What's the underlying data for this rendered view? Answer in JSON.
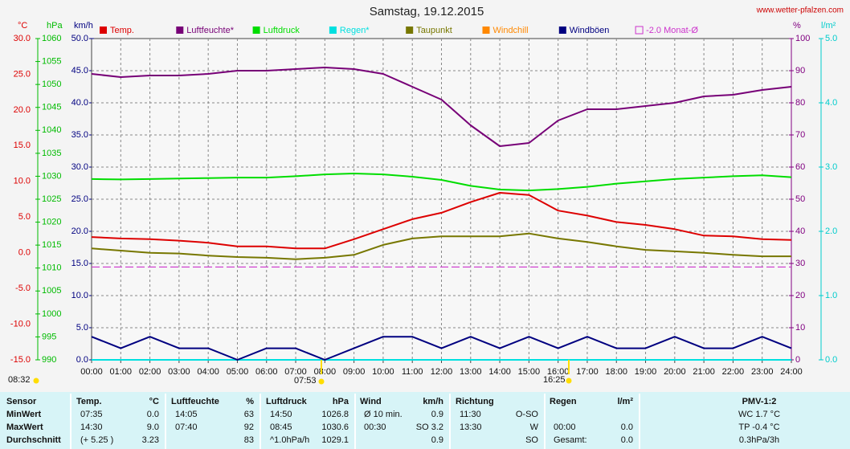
{
  "chart_data": {
    "type": "line",
    "title": "Samstag, 19.12.2015",
    "source": "www.wetter-pfalzen.com",
    "x": [
      0,
      1,
      2,
      3,
      4,
      5,
      6,
      7,
      8,
      9,
      10,
      11,
      12,
      13,
      14,
      15,
      16,
      17,
      18,
      19,
      20,
      21,
      22,
      23,
      24
    ],
    "xlim": [
      0,
      24
    ],
    "xticks": [
      {
        "value": 0,
        "label": "00:00"
      },
      {
        "value": 1,
        "label": "01:00"
      },
      {
        "value": 2,
        "label": "02:00"
      },
      {
        "value": 3,
        "label": "03:00"
      },
      {
        "value": 4,
        "label": "04:00"
      },
      {
        "value": 5,
        "label": "05:00"
      },
      {
        "value": 6,
        "label": "06:00"
      },
      {
        "value": 7,
        "label": "07:00"
      },
      {
        "value": 8,
        "label": "08:00"
      },
      {
        "value": 9,
        "label": "09:00"
      },
      {
        "value": 10,
        "label": "10:00"
      },
      {
        "value": 11,
        "label": "11:00"
      },
      {
        "value": 12,
        "label": "12:00"
      },
      {
        "value": 13,
        "label": "13:00"
      },
      {
        "value": 14,
        "label": "14:00"
      },
      {
        "value": 15,
        "label": "15:00"
      },
      {
        "value": 16,
        "label": "16:00"
      },
      {
        "value": 17,
        "label": "17:00"
      },
      {
        "value": 18,
        "label": "18:00"
      },
      {
        "value": 19,
        "label": "19:00"
      },
      {
        "value": 20,
        "label": "20:00"
      },
      {
        "value": 21,
        "label": "21:00"
      },
      {
        "value": 22,
        "label": "22:00"
      },
      {
        "value": 23,
        "label": "23:00"
      },
      {
        "value": 24,
        "label": "24:00"
      }
    ],
    "grid": true,
    "axes": [
      {
        "label": "°C",
        "color": "#dd0000",
        "ylim": [
          -15,
          30
        ],
        "yticks": [
          {
            "value": -15,
            "label": "-15.0"
          },
          {
            "value": -10,
            "label": "-10.0"
          },
          {
            "value": -5,
            "label": "-5.0"
          },
          {
            "value": 0,
            "label": "0.0"
          },
          {
            "value": 5,
            "label": "5.0"
          },
          {
            "value": 10,
            "label": "10.0"
          },
          {
            "value": 15,
            "label": "15.0"
          },
          {
            "value": 20,
            "label": "20.0"
          },
          {
            "value": 25,
            "label": "25.0"
          },
          {
            "value": 30,
            "label": "30.0"
          }
        ]
      },
      {
        "label": "hPa",
        "color": "#00bb00",
        "ylim": [
          990,
          1060
        ],
        "yticks": [
          990,
          995,
          1000,
          1005,
          1010,
          1015,
          1020,
          1025,
          1030,
          1035,
          1040,
          1045,
          1050,
          1055,
          1060
        ]
      },
      {
        "label": "km/h",
        "color": "#000080",
        "ylim": [
          0,
          50
        ],
        "yticks": [
          {
            "value": 0,
            "label": "0.0"
          },
          {
            "value": 5,
            "label": "5.0"
          },
          {
            "value": 10,
            "label": "10.0"
          },
          {
            "value": 15,
            "label": "15.0"
          },
          {
            "value": 20,
            "label": "20.0"
          },
          {
            "value": 25,
            "label": "25.0"
          },
          {
            "value": 30,
            "label": "30.0"
          },
          {
            "value": 35,
            "label": "35.0"
          },
          {
            "value": 40,
            "label": "40.0"
          },
          {
            "value": 45,
            "label": "45.0"
          },
          {
            "value": 50,
            "label": "50.0"
          }
        ]
      },
      {
        "label": "%",
        "color": "#800080",
        "ylim": [
          0,
          100
        ],
        "yticks": [
          0,
          10,
          20,
          30,
          40,
          50,
          60,
          70,
          80,
          90,
          100
        ]
      },
      {
        "label": "l/m²",
        "color": "#00cccc",
        "ylim": [
          0,
          5
        ],
        "yticks": [
          {
            "value": 0,
            "label": "0.0"
          },
          {
            "value": 1,
            "label": "1.0"
          },
          {
            "value": 2,
            "label": "2.0"
          },
          {
            "value": 3,
            "label": "3.0"
          },
          {
            "value": 4,
            "label": "4.0"
          },
          {
            "value": 5,
            "label": "5.0"
          }
        ]
      }
    ],
    "series": [
      {
        "name": "Temp.",
        "color": "#dd0000",
        "axis": "°C",
        "values": [
          2.2,
          2.0,
          1.9,
          1.7,
          1.4,
          0.9,
          0.9,
          0.6,
          0.6,
          1.9,
          3.3,
          4.7,
          5.6,
          7.1,
          8.4,
          8.1,
          5.9,
          5.2,
          4.3,
          3.9,
          3.3,
          2.4,
          2.3,
          1.9,
          1.8
        ]
      },
      {
        "name": "Luftfeuchte*",
        "color": "#770077",
        "axis": "%",
        "values": [
          89,
          88,
          88.5,
          88.5,
          89,
          90,
          90,
          90.5,
          91,
          90.5,
          89,
          85,
          81,
          73,
          66.5,
          67.5,
          74.5,
          78,
          78,
          79,
          80,
          82,
          82.5,
          84,
          85
        ]
      },
      {
        "name": "Luftdruck",
        "color": "#00dd00",
        "axis": "hPa",
        "values": [
          1029.4,
          1029.3,
          1029.4,
          1029.5,
          1029.6,
          1029.7,
          1029.7,
          1030.0,
          1030.4,
          1030.6,
          1030.4,
          1029.9,
          1029.2,
          1027.9,
          1027.1,
          1026.9,
          1027.2,
          1027.7,
          1028.4,
          1028.9,
          1029.4,
          1029.7,
          1030.0,
          1030.2,
          1029.8
        ]
      },
      {
        "name": "Regen*",
        "color": "#00e0e0",
        "axis": "l/m²",
        "values": [
          0,
          0,
          0,
          0,
          0,
          0,
          0,
          0,
          0,
          0,
          0,
          0,
          0,
          0,
          0,
          0,
          0,
          0,
          0,
          0,
          0,
          0,
          0,
          0,
          0
        ]
      },
      {
        "name": "Taupunkt",
        "color": "#777700",
        "axis": "°C",
        "values": [
          0.6,
          0.3,
          0,
          -0.1,
          -0.4,
          -0.6,
          -0.7,
          -0.9,
          -0.7,
          -0.3,
          1.1,
          2.0,
          2.3,
          2.3,
          2.3,
          2.7,
          2.0,
          1.5,
          0.9,
          0.4,
          0.2,
          0,
          -0.3,
          -0.5,
          -0.5
        ]
      },
      {
        "name": "Windchill",
        "color": "#ff8800",
        "axis": "°C",
        "values": [
          null,
          null,
          null,
          null,
          null,
          null,
          null,
          null,
          null,
          null,
          null,
          null,
          null,
          null,
          null,
          null,
          null,
          null,
          null,
          null,
          null,
          null,
          null,
          null,
          null
        ]
      },
      {
        "name": "Windböen",
        "color": "#000080",
        "axis": "km/h",
        "values": [
          3.6,
          1.8,
          3.6,
          1.8,
          1.8,
          0,
          1.8,
          1.8,
          0,
          1.8,
          3.6,
          3.6,
          1.8,
          3.6,
          1.8,
          3.6,
          1.8,
          3.6,
          1.8,
          1.8,
          3.6,
          1.8,
          1.8,
          3.6,
          1.8
        ]
      }
    ],
    "reference_lines": [
      {
        "name": "-2.0 Monat-Ø",
        "color": "#cc33cc",
        "axis": "°C",
        "value": -2.0
      }
    ],
    "sun_times": [
      "08:32",
      "07:53",
      "16:25"
    ]
  },
  "table": {
    "header": [
      "Sensor",
      "Temp.",
      "°C",
      "Luftfeuchte",
      "%",
      "Luftdruck",
      "hPa",
      "Wind",
      "km/h",
      "Richtung",
      null,
      "Regen",
      "l/m²",
      "PMV-1:2"
    ],
    "rows": [
      [
        "MinWert",
        "07:35",
        "0.0",
        "14:05",
        "63",
        "14:50",
        "1026.8",
        "Ø 10 min.",
        "0.9",
        "11:30",
        "O-SO",
        null,
        null,
        "WC 1.7 °C"
      ],
      [
        "MaxWert",
        "14:30",
        "9.0",
        "07:40",
        "92",
        "08:45",
        "1030.6",
        "00:30",
        "SO 3.2",
        "13:30",
        "W",
        "00:00",
        "0.0",
        "TP -0.4 °C"
      ],
      [
        "Durchschnitt",
        "(+ 5.25 )",
        "3.23",
        null,
        "83",
        "^1.0hPa/h",
        "1029.1",
        null,
        "0.9",
        null,
        "SO",
        "Gesamt:",
        "0.0",
        "0.3hPa/3h"
      ]
    ]
  }
}
